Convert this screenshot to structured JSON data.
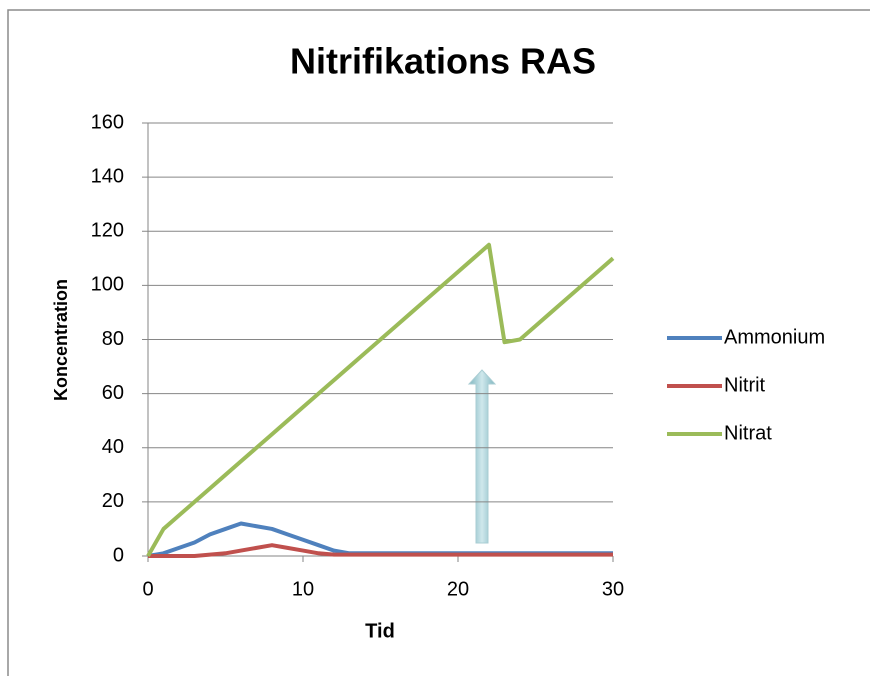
{
  "chart_data": {
    "type": "line",
    "title": "Nitrifikations RAS",
    "x_label": "Tid",
    "y_label": "Koncentration",
    "x": [
      0,
      1,
      2,
      3,
      4,
      5,
      6,
      7,
      8,
      9,
      10,
      11,
      12,
      13,
      14,
      15,
      16,
      17,
      18,
      19,
      20,
      21,
      22,
      23,
      24,
      25,
      26,
      27,
      28,
      29,
      30
    ],
    "series": [
      {
        "name": "Ammonium",
        "color": "#4f81bd",
        "values": [
          0,
          1,
          3,
          5,
          8,
          10,
          12,
          11,
          10,
          8,
          6,
          4,
          2,
          1,
          1,
          1,
          1,
          1,
          1,
          1,
          1,
          1,
          1,
          1,
          1,
          1,
          1,
          1,
          1,
          1,
          1
        ]
      },
      {
        "name": "Nitrit",
        "color": "#c0504d",
        "values": [
          0,
          0,
          0,
          0,
          0.5,
          1,
          2,
          3,
          4,
          3,
          2,
          1,
          0.5,
          0.5,
          0.5,
          0.5,
          0.5,
          0.5,
          0.5,
          0.5,
          0.5,
          0.5,
          0.5,
          0.5,
          0.5,
          0.5,
          0.5,
          0.5,
          0.5,
          0.5,
          0.5
        ]
      },
      {
        "name": "Nitrat",
        "color": "#9bbb59",
        "values": [
          0,
          10,
          15,
          20,
          25,
          30,
          35,
          40,
          45,
          50,
          55,
          60,
          65,
          70,
          75,
          80,
          85,
          90,
          95,
          100,
          105,
          110,
          115,
          79,
          80,
          85,
          90,
          95,
          100,
          105,
          110
        ]
      }
    ],
    "xlim": [
      0,
      30
    ],
    "xticks": [
      0,
      10,
      20,
      30
    ],
    "ylim": [
      0,
      160
    ],
    "yticks": [
      0,
      20,
      40,
      60,
      80,
      100,
      120,
      140,
      160
    ],
    "grid": true,
    "legend": "right"
  }
}
